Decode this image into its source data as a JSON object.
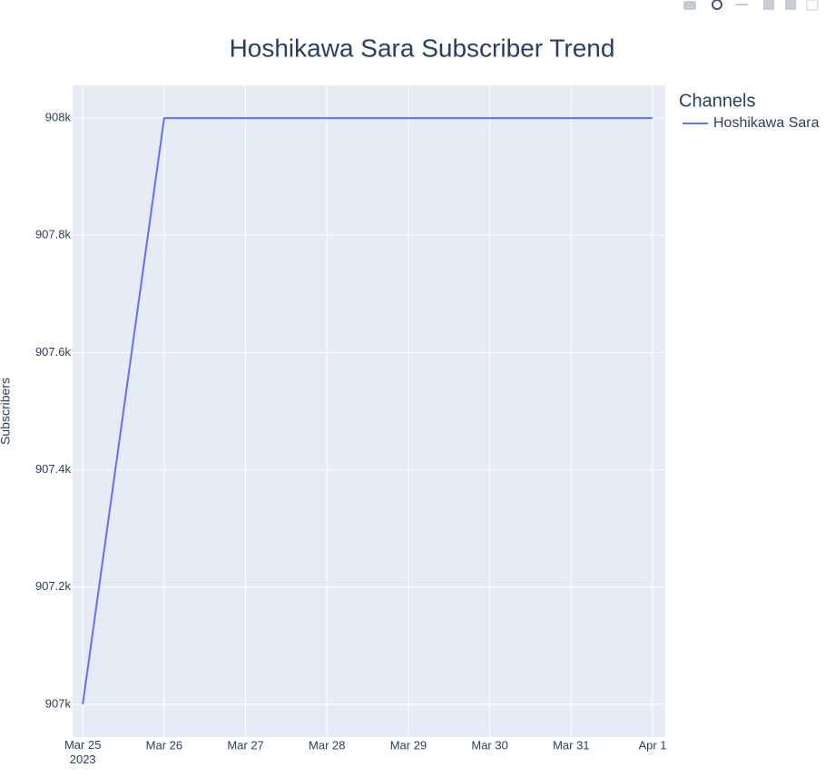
{
  "chart_data": {
    "type": "line",
    "title": "Hoshikawa Sara Subscriber Trend",
    "y_label": "Subscribers",
    "legend_title": "Channels",
    "legend_position": "right",
    "grid": true,
    "x": [
      "2023-03-25",
      "2023-03-26",
      "2023-03-27",
      "2023-03-28",
      "2023-03-29",
      "2023-03-30",
      "2023-03-31",
      "2023-04-01"
    ],
    "series": [
      {
        "name": "Hoshikawa Sara",
        "color": "#636efa",
        "values": [
          907000,
          908000,
          908000,
          908000,
          908000,
          908000,
          908000,
          908000
        ]
      }
    ],
    "xlim": [
      "2023-03-24T21:00",
      "2023-04-01T03:45"
    ],
    "xticks": [
      {
        "value": "2023-03-25",
        "label": "Mar 25\n2023"
      },
      {
        "value": "2023-03-26",
        "label": "Mar 26"
      },
      {
        "value": "2023-03-27",
        "label": "Mar 27"
      },
      {
        "value": "2023-03-28",
        "label": "Mar 28"
      },
      {
        "value": "2023-03-29",
        "label": "Mar 29"
      },
      {
        "value": "2023-03-30",
        "label": "Mar 30"
      },
      {
        "value": "2023-03-31",
        "label": "Mar 31"
      },
      {
        "value": "2023-04-01",
        "label": "Apr 1"
      }
    ],
    "ylim": [
      906944,
      908056
    ],
    "yticks": [
      {
        "value": 907000,
        "label": "907k"
      },
      {
        "value": 907200,
        "label": "907.2k"
      },
      {
        "value": 907400,
        "label": "907.4k"
      },
      {
        "value": 907600,
        "label": "907.6k"
      },
      {
        "value": 907800,
        "label": "907.8k"
      },
      {
        "value": 908000,
        "label": "908k"
      }
    ]
  }
}
